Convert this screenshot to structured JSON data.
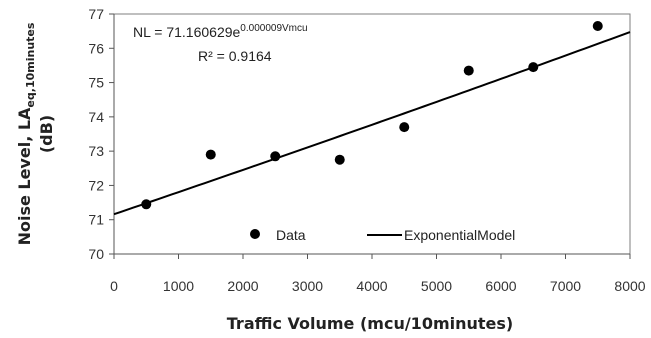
{
  "chart_data": {
    "type": "scatter",
    "xlabel": "Traffic Volume (mcu/10minutes)",
    "ylabel": {
      "main": "Noise Level, LA",
      "subscript": "eq,10minutes",
      "unit": "(dB)"
    },
    "xlim": [
      0,
      8000
    ],
    "ylim": [
      70,
      77
    ],
    "x_ticks": [
      "0",
      "1000",
      "2000",
      "3000",
      "4000",
      "5000",
      "6000",
      "7000",
      "8000"
    ],
    "y_ticks": [
      "70",
      "71",
      "72",
      "73",
      "74",
      "75",
      "76",
      "77"
    ],
    "grid": false,
    "legend_position": "bottom-center",
    "series": [
      {
        "name": "Data",
        "marker": "circle",
        "color": "#000000",
        "x": [
          500,
          1500,
          2500,
          3500,
          4500,
          5500,
          6500,
          7500
        ],
        "y": [
          71.45,
          72.9,
          72.85,
          72.75,
          73.7,
          75.35,
          75.45,
          76.65
        ]
      },
      {
        "name": "ExponentialModel",
        "type": "line",
        "color": "#000000",
        "model": {
          "a": 71.160629,
          "b": 9e-06
        }
      }
    ],
    "annotations": {
      "equation_prefix": "NL = 71.160629e",
      "equation_exponent": "0.000009Vmcu",
      "r_squared": "R² = 0.9164"
    }
  }
}
